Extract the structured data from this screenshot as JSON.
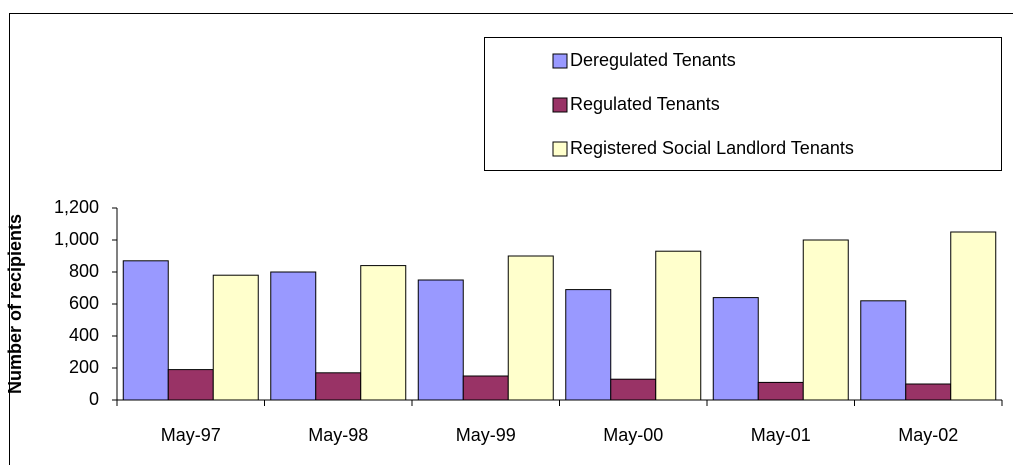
{
  "chart_data": {
    "type": "bar",
    "y_label": "Number of recipients",
    "categories": [
      "May-97",
      "May-98",
      "May-99",
      "May-00",
      "May-01",
      "May-02"
    ],
    "series": [
      {
        "name": "Deregulated Tenants",
        "color": "#9999ff",
        "values": [
          870,
          800,
          750,
          690,
          640,
          620
        ]
      },
      {
        "name": "Regulated Tenants",
        "color": "#993366",
        "values": [
          190,
          170,
          150,
          130,
          110,
          100
        ]
      },
      {
        "name": "Registered Social Landlord Tenants",
        "color": "#ffffcc",
        "values": [
          780,
          840,
          900,
          930,
          1000,
          1050
        ]
      }
    ],
    "ylim": [
      0,
      1200
    ],
    "yticks": [
      0,
      200,
      400,
      600,
      800,
      {
        "value": 1000,
        "label": "1,000"
      },
      {
        "value": 1200,
        "label": "1,200"
      }
    ],
    "grid": false,
    "legend": "top-right"
  }
}
